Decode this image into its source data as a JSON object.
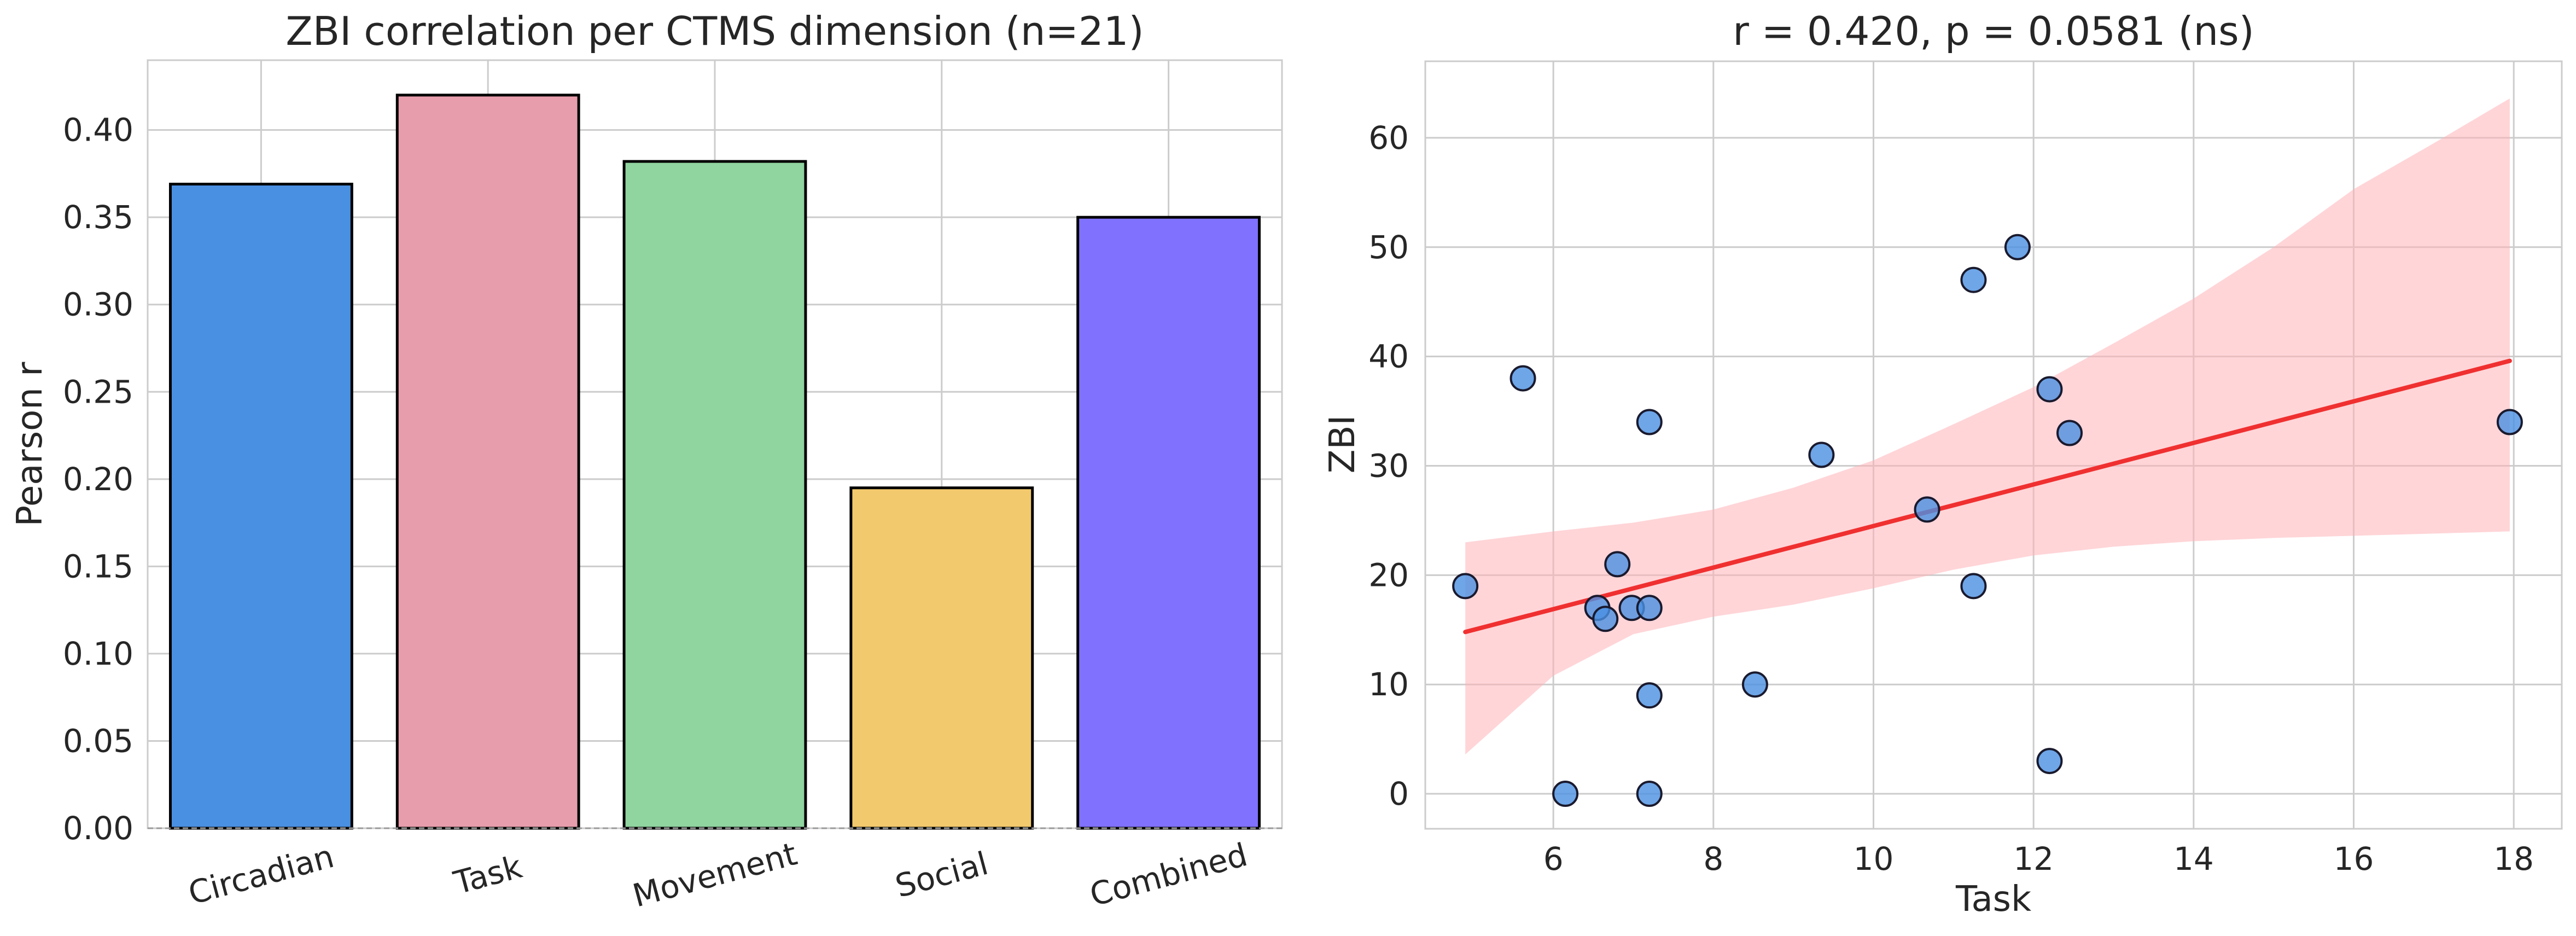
{
  "chart_data": [
    {
      "type": "bar",
      "title": "ZBI correlation per CTMS dimension (n=21)",
      "xlabel": "",
      "ylabel": "Pearson r",
      "categories": [
        "Circadian",
        "Task",
        "Movement",
        "Social",
        "Combined"
      ],
      "values": [
        0.369,
        0.42,
        0.382,
        0.195,
        0.35
      ],
      "colors": [
        "#4a90e2",
        "#e89dac",
        "#90d49f",
        "#f2c96d",
        "#8071ff"
      ],
      "ylim": [
        0.0,
        0.44
      ],
      "yticks": [
        "0.00",
        "0.05",
        "0.10",
        "0.15",
        "0.20",
        "0.25",
        "0.30",
        "0.35",
        "0.40"
      ],
      "grid": true,
      "baseline": "dashed-gray"
    },
    {
      "type": "scatter",
      "title": "r = 0.420, p = 0.0581 (ns)",
      "xlabel": "Task",
      "ylabel": "ZBI",
      "xlim": [
        4.4,
        18.6
      ],
      "ylim": [
        -3.2,
        67
      ],
      "xticks": [
        "6",
        "8",
        "10",
        "12",
        "14",
        "16",
        "18"
      ],
      "yticks": [
        "0",
        "10",
        "20",
        "30",
        "40",
        "50",
        "60"
      ],
      "grid": true,
      "point_color": "#4a90e2",
      "points": [
        {
          "x": 4.9,
          "y": 19
        },
        {
          "x": 5.62,
          "y": 38
        },
        {
          "x": 6.15,
          "y": 0
        },
        {
          "x": 6.55,
          "y": 17
        },
        {
          "x": 6.65,
          "y": 16
        },
        {
          "x": 6.8,
          "y": 21
        },
        {
          "x": 6.98,
          "y": 17
        },
        {
          "x": 7.2,
          "y": 17
        },
        {
          "x": 7.2,
          "y": 34
        },
        {
          "x": 7.2,
          "y": 9
        },
        {
          "x": 7.2,
          "y": 0
        },
        {
          "x": 8.52,
          "y": 10
        },
        {
          "x": 9.35,
          "y": 31
        },
        {
          "x": 10.67,
          "y": 26
        },
        {
          "x": 11.25,
          "y": 47
        },
        {
          "x": 11.25,
          "y": 19
        },
        {
          "x": 11.8,
          "y": 50
        },
        {
          "x": 12.2,
          "y": 37
        },
        {
          "x": 12.2,
          "y": 3
        },
        {
          "x": 12.45,
          "y": 33
        },
        {
          "x": 17.95,
          "y": 34
        }
      ],
      "fit_line": {
        "x": [
          4.9,
          17.95
        ],
        "y": [
          14.8,
          39.6
        ],
        "color": "#f03030"
      },
      "confidence_band": {
        "color": "#ffb3b8",
        "x": [
          4.9,
          6,
          7,
          8,
          9,
          10,
          11,
          12,
          13,
          14,
          15,
          16,
          17,
          17.95
        ],
        "lower": [
          3.6,
          10.8,
          14.6,
          16.2,
          17.3,
          18.8,
          20.5,
          21.8,
          22.6,
          23.1,
          23.4,
          23.6,
          23.8,
          24.0
        ],
        "upper": [
          23.0,
          24.0,
          24.8,
          26.0,
          28.0,
          30.5,
          33.8,
          37.2,
          41.2,
          45.3,
          50.0,
          55.3,
          59.5,
          63.6
        ]
      }
    }
  ]
}
